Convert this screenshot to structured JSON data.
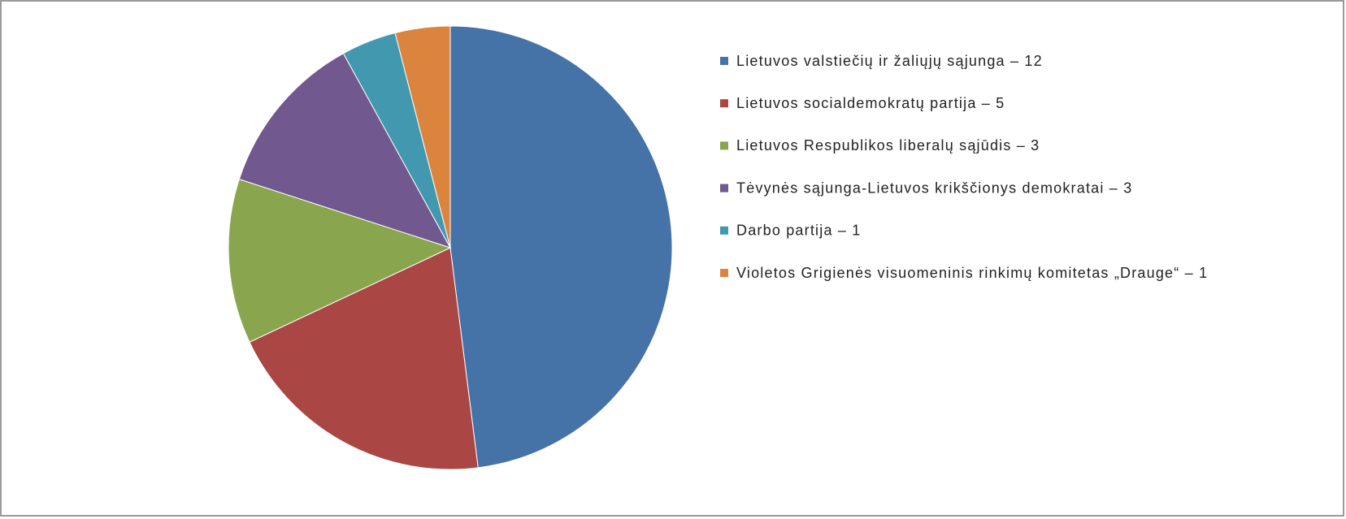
{
  "chart_data": {
    "type": "pie",
    "categories": [
      "Lietuvos valstiečių ir žaliųjų sąjunga – 12",
      "Lietuvos socialdemokratų partija – 5",
      "Lietuvos Respublikos liberalų sąjūdis – 3",
      "Tėvynės sąjunga-Lietuvos krikščionys demokratai – 3",
      "Darbo partija – 1",
      "Violetos Grigienės visuomeninis rinkimų komitetas „Drauge“ – 1"
    ],
    "values": [
      12,
      5,
      3,
      3,
      1,
      1
    ],
    "colors": [
      "#4572a7",
      "#aa4643",
      "#89a54e",
      "#71588f",
      "#4198af",
      "#db843d"
    ],
    "legend": "right"
  }
}
